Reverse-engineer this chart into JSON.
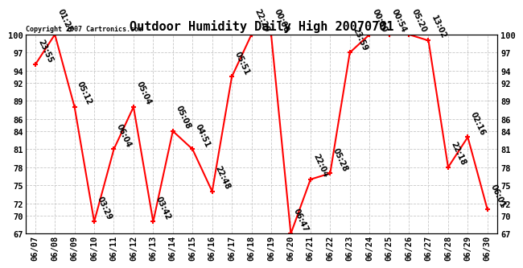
{
  "title": "Outdoor Humidity Daily High 20070701",
  "copyright_text": "Copyright 2007 Cartronics.com",
  "x_labels": [
    "06/07",
    "06/08",
    "06/09",
    "06/10",
    "06/11",
    "06/12",
    "06/13",
    "06/14",
    "06/15",
    "06/16",
    "06/17",
    "06/18",
    "06/19",
    "06/20",
    "06/21",
    "06/22",
    "06/23",
    "06/24",
    "06/25",
    "06/26",
    "06/27",
    "06/28",
    "06/29",
    "06/30"
  ],
  "y_values": [
    95,
    100,
    88,
    69,
    81,
    88,
    69,
    84,
    81,
    74,
    93,
    100,
    100,
    67,
    76,
    77,
    97,
    100,
    100,
    100,
    99,
    78,
    83,
    71
  ],
  "point_labels": [
    "23:55",
    "01:26",
    "05:12",
    "03:29",
    "06:04",
    "05:04",
    "03:42",
    "05:08",
    "04:51",
    "22:48",
    "05:51",
    "22:29",
    "00:00",
    "06:47",
    "22:04",
    "05:28",
    "23:59",
    "00:50",
    "00:54",
    "05:20",
    "13:02",
    "22:18",
    "02:16",
    "06:01"
  ],
  "ylim_min": 67,
  "ylim_max": 100,
  "yticks": [
    100,
    97,
    94,
    92,
    89,
    86,
    84,
    81,
    78,
    75,
    72,
    70,
    67
  ],
  "line_color": "#ff0000",
  "marker_color": "#ff0000",
  "bg_color": "#ffffff",
  "grid_color": "#c8c8c8",
  "title_fontsize": 11,
  "tick_fontsize": 7.5,
  "annotation_fontsize": 7
}
